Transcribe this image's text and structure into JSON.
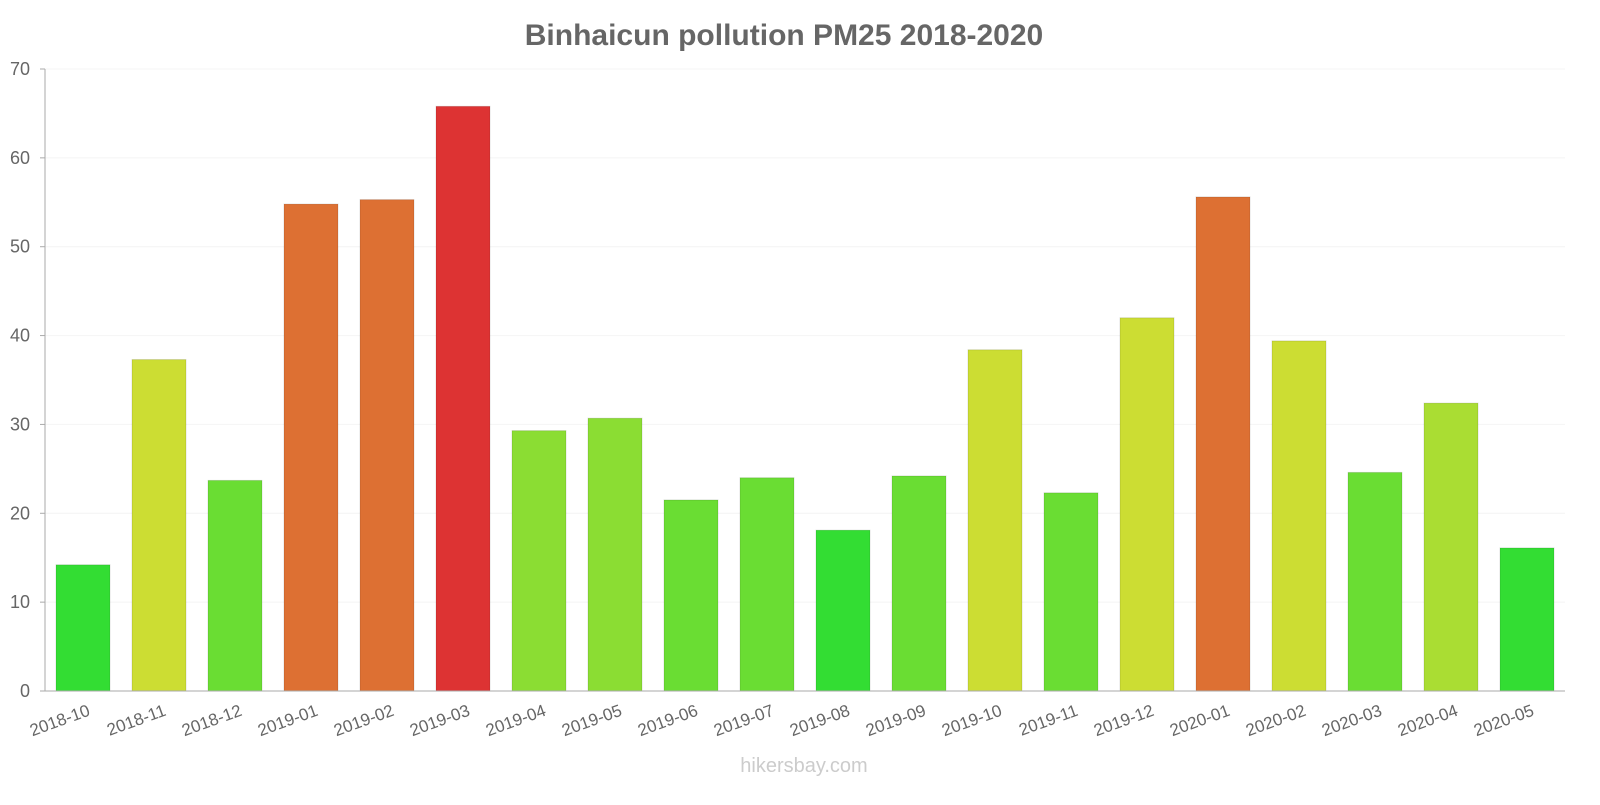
{
  "chart_data": {
    "type": "bar",
    "title": "Binhaicun pollution PM25 2018-2020",
    "xlabel": "",
    "ylabel": "",
    "ylim": [
      0,
      70
    ],
    "yticks": [
      0,
      10,
      20,
      30,
      40,
      50,
      60,
      70
    ],
    "grid": true,
    "legend": "none",
    "categories": [
      "2018-10",
      "2018-11",
      "2018-12",
      "2019-01",
      "2019-02",
      "2019-03",
      "2019-04",
      "2019-05",
      "2019-06",
      "2019-07",
      "2019-08",
      "2019-09",
      "2019-10",
      "2019-11",
      "2019-12",
      "2020-01",
      "2020-02",
      "2020-03",
      "2020-04",
      "2020-05"
    ],
    "values": [
      14.2,
      37.3,
      23.7,
      54.8,
      55.3,
      65.8,
      29.3,
      30.7,
      21.5,
      24.0,
      18.1,
      24.2,
      38.4,
      22.3,
      42.0,
      55.6,
      39.4,
      24.6,
      32.4,
      16.1
    ],
    "colors": [
      "#33dd33",
      "#ccdd33",
      "#6add33",
      "#dd7033",
      "#dd7033",
      "#dd3333",
      "#8bdd33",
      "#8bdd33",
      "#6add33",
      "#6add33",
      "#33dd33",
      "#6add33",
      "#ccdd33",
      "#6add33",
      "#ccdd33",
      "#dd7033",
      "#ccdd33",
      "#6add33",
      "#aadd33",
      "#33dd33"
    ]
  },
  "watermark": "hikersbay.com"
}
